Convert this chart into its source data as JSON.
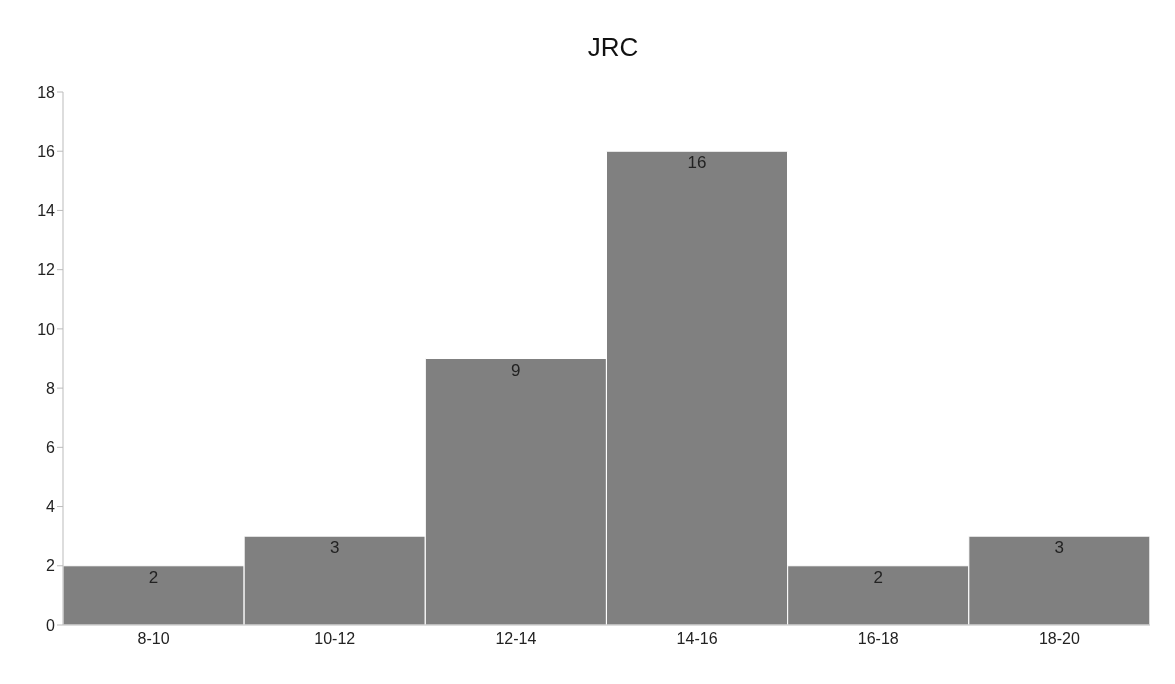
{
  "chart_data": {
    "type": "bar",
    "title": "JRC",
    "categories": [
      "8-10",
      "10-12",
      "12-14",
      "14-16",
      "16-18",
      "18-20"
    ],
    "values": [
      2,
      3,
      9,
      16,
      2,
      3
    ],
    "color": "#808080",
    "ylim": [
      0,
      18
    ],
    "yticks": [
      0,
      2,
      4,
      6,
      8,
      10,
      12,
      14,
      16,
      18
    ],
    "data_labels": true
  }
}
